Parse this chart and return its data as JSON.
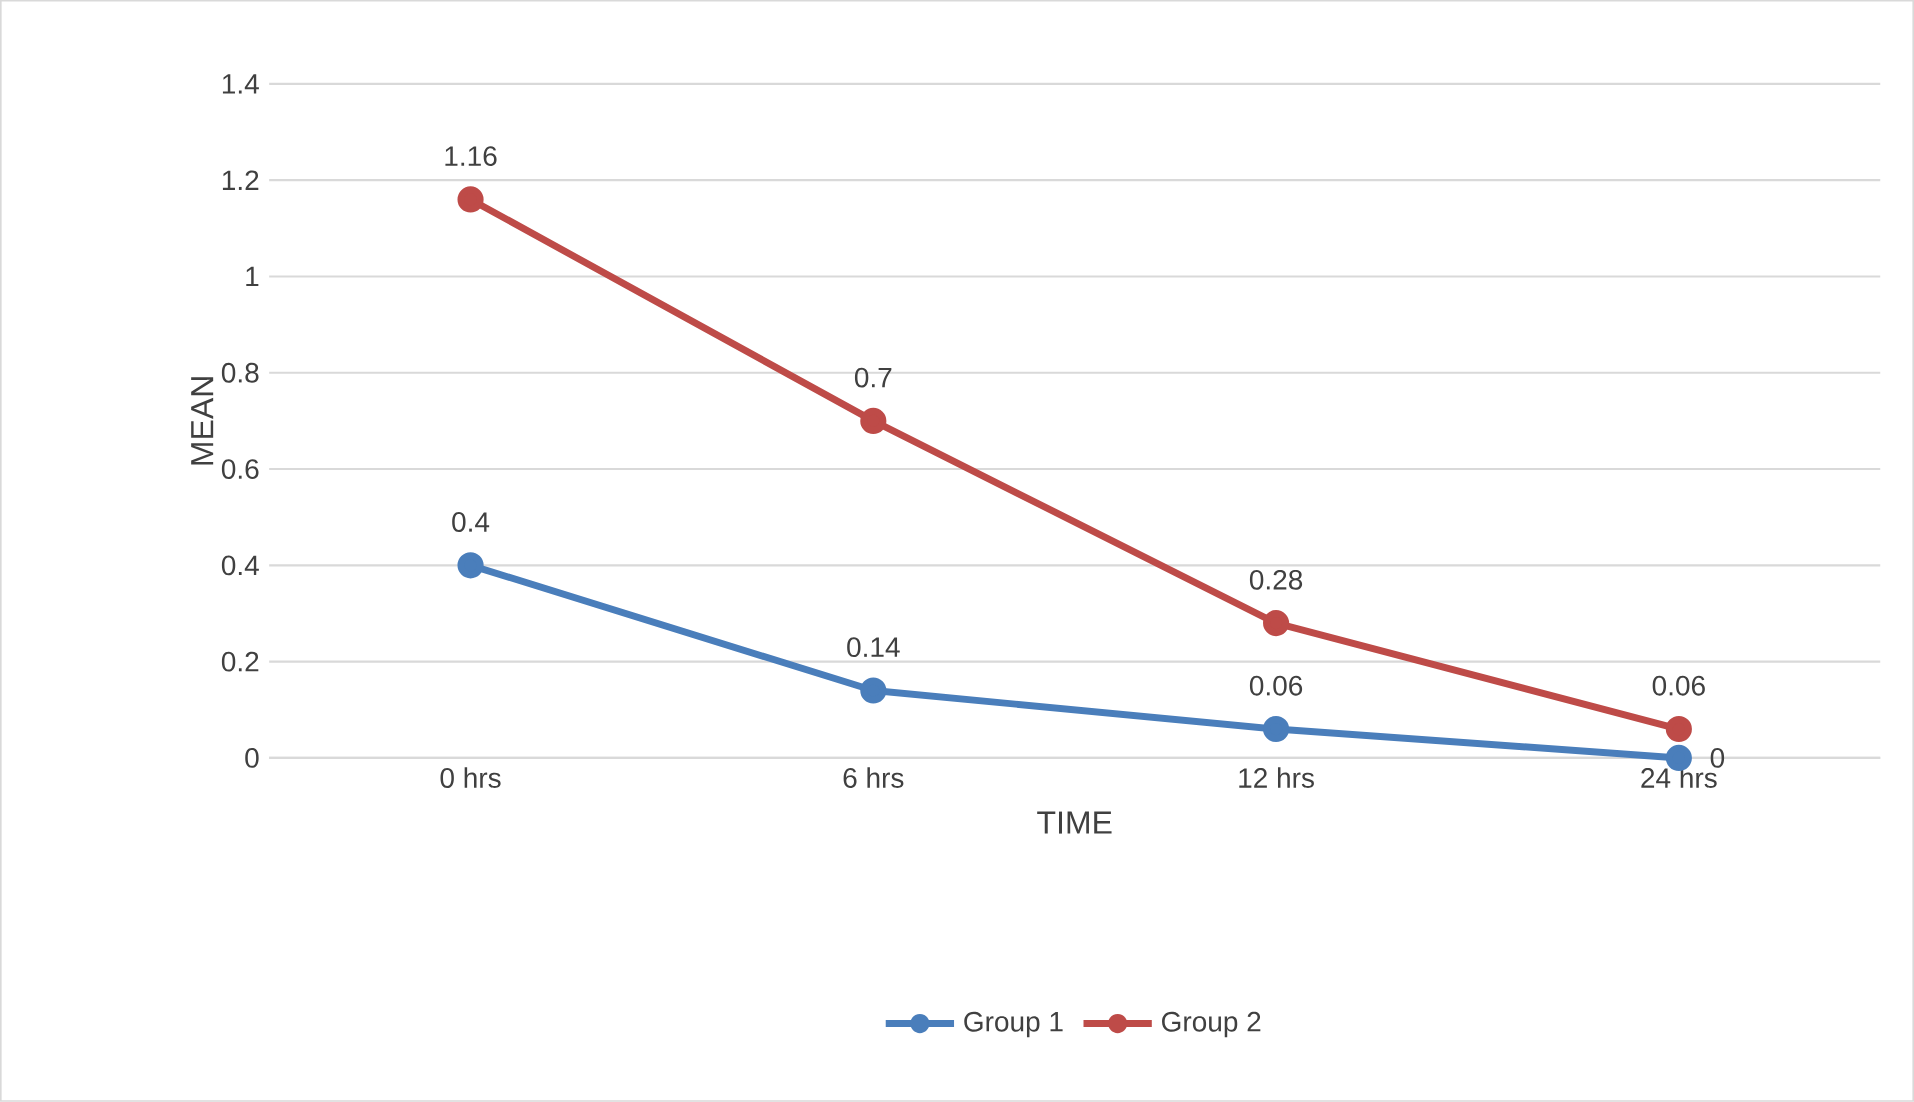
{
  "chart_data": {
    "type": "line",
    "xlabel": "TIME",
    "ylabel": "MEAN",
    "categories": [
      "0 hrs",
      "6 hrs",
      "12 hrs",
      "24 hrs"
    ],
    "series": [
      {
        "name": "Group 1",
        "color": "#4a7ebb",
        "values": [
          0.4,
          0.14,
          0.06,
          0
        ]
      },
      {
        "name": "Group 2",
        "color": "#be4b48",
        "values": [
          1.16,
          0.7,
          0.28,
          0.06
        ]
      }
    ],
    "ylim": [
      0,
      1.4
    ],
    "yticks": [
      0,
      0.2,
      0.4,
      0.6,
      0.8,
      1,
      1.2,
      1.4
    ],
    "grid": "y",
    "legend": "bottom",
    "marker": "circle",
    "line_style": "solid",
    "data_labels": true
  }
}
